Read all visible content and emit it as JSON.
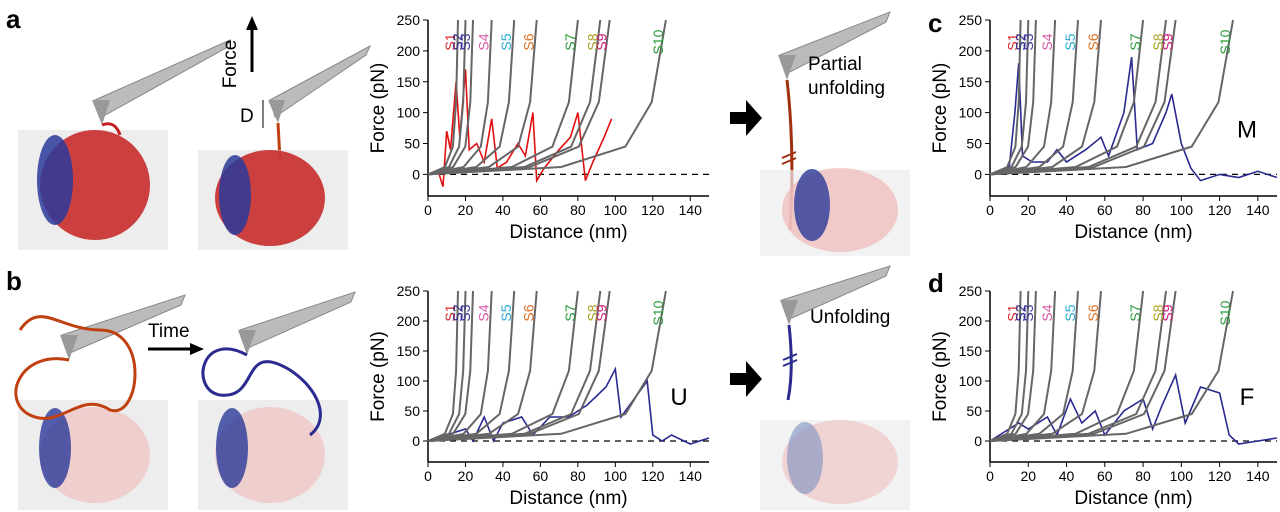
{
  "panel_labels": [
    "a",
    "b",
    "c",
    "d"
  ],
  "illustrations": {
    "force_label": "Force",
    "d_label": "D",
    "time_label": "Time",
    "partial_unfolding": [
      "Partial",
      "unfolding"
    ],
    "unfolding": "Unfolding"
  },
  "chart_data": [
    {
      "type": "line",
      "xlabel": "Distance (nm)",
      "ylabel": "Force (pN)",
      "xlim": [
        0,
        150
      ],
      "ylim": [
        -35,
        250
      ],
      "xticks": [
        0,
        20,
        40,
        60,
        80,
        100,
        120,
        140
      ],
      "yticks": [
        0,
        50,
        100,
        150,
        200,
        250
      ],
      "zero_line": true,
      "curve_color": "#666666",
      "curves": [
        {
          "name": "S1",
          "color": "#d62728",
          "x": [
            0,
            9,
            13.3,
            15,
            16
          ],
          "values": [
            0,
            12,
            45,
            117,
            250
          ]
        },
        {
          "name": "S2",
          "color": "#2b2b8f",
          "x": [
            0,
            11.2,
            16.6,
            18.8,
            20
          ],
          "values": [
            0,
            12,
            45,
            117,
            250
          ]
        },
        {
          "name": "S3",
          "color": "#3a3a9a",
          "x": [
            0,
            13.4,
            19.9,
            22.6,
            24
          ],
          "values": [
            0,
            12,
            45,
            117,
            250
          ]
        },
        {
          "name": "S4",
          "color": "#d957a8",
          "x": [
            0,
            19,
            28.2,
            32,
            34
          ],
          "values": [
            0,
            12,
            45,
            117,
            250
          ]
        },
        {
          "name": "S5",
          "color": "#29a8d8",
          "x": [
            0,
            25.8,
            38.2,
            43.2,
            46
          ],
          "values": [
            0,
            12,
            45,
            117,
            250
          ]
        },
        {
          "name": "S6",
          "color": "#e07020",
          "x": [
            0,
            32.5,
            48.1,
            54.5,
            58
          ],
          "values": [
            0,
            12,
            45,
            117,
            250
          ]
        },
        {
          "name": "S7",
          "color": "#2a9a3a",
          "x": [
            0,
            44.8,
            66.4,
            75.2,
            80
          ],
          "values": [
            0,
            12,
            45,
            117,
            250
          ]
        },
        {
          "name": "S8",
          "color": "#a8a020",
          "x": [
            0,
            51.5,
            76.4,
            86.5,
            92
          ],
          "values": [
            0,
            12,
            45,
            117,
            250
          ]
        },
        {
          "name": "S9",
          "color": "#d02080",
          "x": [
            0,
            54.3,
            80.5,
            91.2,
            97
          ],
          "values": [
            0,
            12,
            45,
            117,
            250
          ]
        },
        {
          "name": "S10",
          "color": "#2a9a3a",
          "x": [
            0,
            71.1,
            105.4,
            119.4,
            127
          ],
          "values": [
            0,
            12,
            45,
            117,
            250
          ]
        }
      ],
      "series": [
        {
          "color": "#e01010",
          "x": [
            6,
            8,
            10,
            12,
            15,
            17,
            20,
            22,
            26,
            30,
            34,
            37,
            42,
            48,
            52,
            56,
            58,
            62,
            70,
            76,
            80,
            84,
            88,
            94,
            98
          ],
          "values": [
            0,
            -20,
            70,
            40,
            150,
            60,
            170,
            40,
            50,
            20,
            90,
            10,
            20,
            50,
            30,
            100,
            -10,
            10,
            40,
            60,
            100,
            -10,
            20,
            60,
            90
          ]
        }
      ]
    },
    {
      "type": "line",
      "xlabel": "Distance (nm)",
      "ylabel": "Force (pN)",
      "xlim": [
        0,
        150
      ],
      "ylim": [
        -35,
        250
      ],
      "xticks": [
        0,
        20,
        40,
        60,
        80,
        100,
        120,
        140
      ],
      "yticks": [
        0,
        50,
        100,
        150,
        200,
        250
      ],
      "zero_line": true,
      "curve_color": "#666666",
      "annotation": "U",
      "curves": [
        {
          "name": "S1",
          "color": "#d62728",
          "x": [
            0,
            9,
            13.3,
            15,
            16
          ],
          "values": [
            0,
            12,
            45,
            117,
            250
          ]
        },
        {
          "name": "S2",
          "color": "#2b2b8f",
          "x": [
            0,
            11.2,
            16.6,
            18.8,
            20
          ],
          "values": [
            0,
            12,
            45,
            117,
            250
          ]
        },
        {
          "name": "S3",
          "color": "#3a3a9a",
          "x": [
            0,
            13.4,
            19.9,
            22.6,
            24
          ],
          "values": [
            0,
            12,
            45,
            117,
            250
          ]
        },
        {
          "name": "S4",
          "color": "#d957a8",
          "x": [
            0,
            19,
            28.2,
            32,
            34
          ],
          "values": [
            0,
            12,
            45,
            117,
            250
          ]
        },
        {
          "name": "S5",
          "color": "#29a8d8",
          "x": [
            0,
            25.8,
            38.2,
            43.2,
            46
          ],
          "values": [
            0,
            12,
            45,
            117,
            250
          ]
        },
        {
          "name": "S6",
          "color": "#e07020",
          "x": [
            0,
            32.5,
            48.1,
            54.5,
            58
          ],
          "values": [
            0,
            12,
            45,
            117,
            250
          ]
        },
        {
          "name": "S7",
          "color": "#2a9a3a",
          "x": [
            0,
            44.8,
            66.4,
            75.2,
            80
          ],
          "values": [
            0,
            12,
            45,
            117,
            250
          ]
        },
        {
          "name": "S8",
          "color": "#a8a020",
          "x": [
            0,
            51.5,
            76.4,
            86.5,
            92
          ],
          "values": [
            0,
            12,
            45,
            117,
            250
          ]
        },
        {
          "name": "S9",
          "color": "#d02080",
          "x": [
            0,
            54.3,
            80.5,
            91.2,
            97
          ],
          "values": [
            0,
            12,
            45,
            117,
            250
          ]
        },
        {
          "name": "S10",
          "color": "#2a9a3a",
          "x": [
            0,
            71.1,
            105.4,
            119.4,
            127
          ],
          "values": [
            0,
            12,
            45,
            117,
            250
          ]
        }
      ],
      "series": [
        {
          "color": "#2a2a90",
          "x": [
            0,
            20,
            24,
            30,
            35,
            40,
            50,
            56,
            65,
            75,
            85,
            95,
            100,
            103,
            110,
            117,
            120,
            125,
            130,
            140,
            150
          ],
          "values": [
            0,
            20,
            0,
            40,
            0,
            30,
            40,
            10,
            40,
            40,
            60,
            90,
            120,
            40,
            70,
            100,
            10,
            0,
            10,
            -5,
            5
          ]
        }
      ]
    },
    {
      "type": "line",
      "xlabel": "Distance (nm)",
      "ylabel": "Force (pN)",
      "xlim": [
        0,
        150
      ],
      "ylim": [
        -35,
        250
      ],
      "xticks": [
        0,
        20,
        40,
        60,
        80,
        100,
        120,
        140
      ],
      "yticks": [
        0,
        50,
        100,
        150,
        200,
        250
      ],
      "zero_line": true,
      "curve_color": "#666666",
      "annotation": "M",
      "curves": [
        {
          "name": "S1",
          "color": "#d62728",
          "x": [
            0,
            9,
            13.3,
            15,
            16
          ],
          "values": [
            0,
            12,
            45,
            117,
            250
          ]
        },
        {
          "name": "S2",
          "color": "#2b2b8f",
          "x": [
            0,
            11.2,
            16.6,
            18.8,
            20
          ],
          "values": [
            0,
            12,
            45,
            117,
            250
          ]
        },
        {
          "name": "S3",
          "color": "#3a3a9a",
          "x": [
            0,
            13.4,
            19.9,
            22.6,
            24
          ],
          "values": [
            0,
            12,
            45,
            117,
            250
          ]
        },
        {
          "name": "S4",
          "color": "#d957a8",
          "x": [
            0,
            19,
            28.2,
            32,
            34
          ],
          "values": [
            0,
            12,
            45,
            117,
            250
          ]
        },
        {
          "name": "S5",
          "color": "#29a8d8",
          "x": [
            0,
            25.8,
            38.2,
            43.2,
            46
          ],
          "values": [
            0,
            12,
            45,
            117,
            250
          ]
        },
        {
          "name": "S6",
          "color": "#e07020",
          "x": [
            0,
            32.5,
            48.1,
            54.5,
            58
          ],
          "values": [
            0,
            12,
            45,
            117,
            250
          ]
        },
        {
          "name": "S7",
          "color": "#2a9a3a",
          "x": [
            0,
            44.8,
            66.4,
            75.2,
            80
          ],
          "values": [
            0,
            12,
            45,
            117,
            250
          ]
        },
        {
          "name": "S8",
          "color": "#a8a020",
          "x": [
            0,
            51.5,
            76.4,
            86.5,
            92
          ],
          "values": [
            0,
            12,
            45,
            117,
            250
          ]
        },
        {
          "name": "S9",
          "color": "#d02080",
          "x": [
            0,
            54.3,
            80.5,
            91.2,
            97
          ],
          "values": [
            0,
            12,
            45,
            117,
            250
          ]
        },
        {
          "name": "S10",
          "color": "#2a9a3a",
          "x": [
            0,
            71.1,
            105.4,
            119.4,
            127
          ],
          "values": [
            0,
            12,
            45,
            117,
            250
          ]
        }
      ],
      "series": [
        {
          "color": "#2a2a90",
          "x": [
            0,
            10,
            13,
            15,
            17,
            22,
            30,
            35,
            40,
            50,
            58,
            62,
            70,
            74,
            77,
            85,
            92,
            95,
            100,
            105,
            110,
            120,
            130,
            140,
            150
          ],
          "values": [
            0,
            10,
            100,
            180,
            30,
            20,
            20,
            40,
            20,
            40,
            60,
            30,
            100,
            190,
            40,
            50,
            100,
            130,
            50,
            10,
            -10,
            0,
            -5,
            5,
            -5
          ]
        }
      ]
    },
    {
      "type": "line",
      "xlabel": "Distance (nm)",
      "ylabel": "Force (pN)",
      "xlim": [
        0,
        150
      ],
      "ylim": [
        -35,
        250
      ],
      "xticks": [
        0,
        20,
        40,
        60,
        80,
        100,
        120,
        140
      ],
      "yticks": [
        0,
        50,
        100,
        150,
        200,
        250
      ],
      "zero_line": true,
      "curve_color": "#666666",
      "annotation": "F",
      "curves": [
        {
          "name": "S1",
          "color": "#d62728",
          "x": [
            0,
            9,
            13.3,
            15,
            16
          ],
          "values": [
            0,
            12,
            45,
            117,
            250
          ]
        },
        {
          "name": "S2",
          "color": "#2b2b8f",
          "x": [
            0,
            11.2,
            16.6,
            18.8,
            20
          ],
          "values": [
            0,
            12,
            45,
            117,
            250
          ]
        },
        {
          "name": "S3",
          "color": "#3a3a9a",
          "x": [
            0,
            13.4,
            19.9,
            22.6,
            24
          ],
          "values": [
            0,
            12,
            45,
            117,
            250
          ]
        },
        {
          "name": "S4",
          "color": "#d957a8",
          "x": [
            0,
            19,
            28.2,
            32,
            34
          ],
          "values": [
            0,
            12,
            45,
            117,
            250
          ]
        },
        {
          "name": "S5",
          "color": "#29a8d8",
          "x": [
            0,
            25.8,
            38.2,
            43.2,
            46
          ],
          "values": [
            0,
            12,
            45,
            117,
            250
          ]
        },
        {
          "name": "S6",
          "color": "#e07020",
          "x": [
            0,
            32.5,
            48.1,
            54.5,
            58
          ],
          "values": [
            0,
            12,
            45,
            117,
            250
          ]
        },
        {
          "name": "S7",
          "color": "#2a9a3a",
          "x": [
            0,
            44.8,
            66.4,
            75.2,
            80
          ],
          "values": [
            0,
            12,
            45,
            117,
            250
          ]
        },
        {
          "name": "S8",
          "color": "#a8a020",
          "x": [
            0,
            51.5,
            76.4,
            86.5,
            92
          ],
          "values": [
            0,
            12,
            45,
            117,
            250
          ]
        },
        {
          "name": "S9",
          "color": "#d02080",
          "x": [
            0,
            54.3,
            80.5,
            91.2,
            97
          ],
          "values": [
            0,
            12,
            45,
            117,
            250
          ]
        },
        {
          "name": "S10",
          "color": "#2a9a3a",
          "x": [
            0,
            71.1,
            105.4,
            119.4,
            127
          ],
          "values": [
            0,
            12,
            45,
            117,
            250
          ]
        }
      ],
      "series": [
        {
          "color": "#2a2a90",
          "x": [
            0,
            15,
            20,
            30,
            35,
            42,
            48,
            55,
            60,
            70,
            80,
            85,
            90,
            97,
            102,
            110,
            120,
            125,
            130,
            140,
            150
          ],
          "values": [
            0,
            30,
            20,
            40,
            10,
            70,
            30,
            50,
            10,
            50,
            70,
            20,
            60,
            110,
            30,
            90,
            80,
            10,
            -5,
            0,
            5
          ]
        }
      ]
    }
  ]
}
